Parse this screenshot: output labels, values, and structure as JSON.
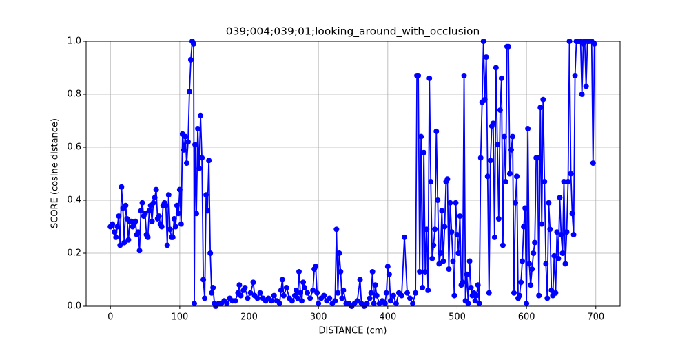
{
  "chart_data": {
    "type": "line",
    "title": "039;004;039;01;looking_around_with_occlusion",
    "xlabel": "DISTANCE (cm)",
    "ylabel": "SCORE (cosine distance)",
    "grid": true,
    "color": "#0000ff",
    "xlim": [
      -35,
      735
    ],
    "ylim": [
      0,
      1
    ],
    "xticks": [
      0,
      100,
      200,
      300,
      400,
      500,
      600,
      700
    ],
    "yticks": [
      {
        "value": 0,
        "label": "0.0"
      },
      {
        "value": 0.2,
        "label": "0.2"
      },
      {
        "value": 0.4,
        "label": "0.4"
      },
      {
        "value": 0.6,
        "label": "0.6"
      },
      {
        "value": 0.8,
        "label": "0.8"
      },
      {
        "value": 1,
        "label": "1.0"
      }
    ],
    "x": [
      0,
      3,
      6,
      8,
      10,
      12,
      14,
      16,
      18,
      20,
      22,
      24,
      26,
      28,
      30,
      32,
      34,
      36,
      38,
      40,
      42,
      44,
      46,
      48,
      50,
      52,
      54,
      56,
      58,
      60,
      62,
      64,
      66,
      68,
      70,
      72,
      74,
      76,
      78,
      80,
      82,
      84,
      86,
      88,
      90,
      92,
      94,
      96,
      98,
      100,
      102,
      104,
      106,
      108,
      110,
      112,
      114,
      116,
      118,
      120,
      121,
      122,
      124,
      126,
      128,
      130,
      132,
      134,
      136,
      138,
      140,
      142,
      144,
      146,
      148,
      150,
      152,
      156,
      160,
      164,
      168,
      172,
      176,
      180,
      184,
      186,
      188,
      192,
      194,
      198,
      202,
      206,
      208,
      212,
      216,
      220,
      224,
      228,
      232,
      236,
      240,
      244,
      246,
      248,
      250,
      254,
      258,
      262,
      266,
      268,
      270,
      272,
      274,
      276,
      278,
      280,
      284,
      288,
      292,
      294,
      296,
      298,
      300,
      304,
      308,
      312,
      316,
      320,
      324,
      326,
      328,
      330,
      332,
      334,
      336,
      340,
      344,
      348,
      352,
      356,
      360,
      362,
      366,
      370,
      374,
      376,
      378,
      380,
      382,
      384,
      388,
      392,
      396,
      398,
      400,
      402,
      404,
      408,
      412,
      416,
      420,
      424,
      428,
      432,
      436,
      440,
      442,
      444,
      446,
      448,
      450,
      452,
      454,
      456,
      458,
      460,
      462,
      464,
      466,
      468,
      470,
      472,
      474,
      476,
      478,
      480,
      482,
      484,
      486,
      488,
      490,
      492,
      494,
      496,
      498,
      500,
      502,
      504,
      506,
      508,
      510,
      512,
      514,
      516,
      518,
      520,
      522,
      524,
      526,
      528,
      530,
      532,
      534,
      536,
      538,
      540,
      542,
      544,
      546,
      548,
      550,
      552,
      554,
      556,
      558,
      560,
      562,
      564,
      566,
      568,
      570,
      572,
      574,
      576,
      578,
      580,
      582,
      584,
      586,
      588,
      590,
      592,
      594,
      596,
      598,
      600,
      602,
      604,
      606,
      608,
      610,
      612,
      614,
      616,
      618,
      620,
      622,
      624,
      626,
      628,
      630,
      632,
      634,
      636,
      638,
      640,
      642,
      644,
      646,
      648,
      650,
      652,
      654,
      656,
      658,
      660,
      662,
      664,
      666,
      668,
      670,
      672,
      674,
      676,
      678,
      680,
      682,
      684,
      686,
      688,
      690,
      694,
      696,
      698
    ],
    "values": [
      0.3,
      0.31,
      0.28,
      0.26,
      0.3,
      0.34,
      0.23,
      0.45,
      0.37,
      0.24,
      0.38,
      0.33,
      0.25,
      0.32,
      0.32,
      0.3,
      0.31,
      0.32,
      0.27,
      0.28,
      0.21,
      0.36,
      0.39,
      0.34,
      0.35,
      0.27,
      0.26,
      0.36,
      0.38,
      0.32,
      0.39,
      0.41,
      0.44,
      0.33,
      0.34,
      0.31,
      0.3,
      0.38,
      0.39,
      0.38,
      0.23,
      0.42,
      0.29,
      0.26,
      0.26,
      0.33,
      0.3,
      0.38,
      0.35,
      0.44,
      0.31,
      0.65,
      0.59,
      0.64,
      0.54,
      0.62,
      0.81,
      0.93,
      1.0,
      0.99,
      0.01,
      0.61,
      0.35,
      0.67,
      0.52,
      0.72,
      0.56,
      0.1,
      0.03,
      0.42,
      0.36,
      0.55,
      0.2,
      0.05,
      0.07,
      0.01,
      0,
      0.01,
      0.01,
      0.02,
      0.01,
      0.03,
      0.02,
      0.02,
      0.05,
      0.08,
      0.04,
      0.06,
      0.07,
      0.03,
      0.05,
      0.09,
      0.04,
      0.03,
      0.05,
      0.03,
      0.02,
      0.03,
      0.02,
      0.04,
      0.02,
      0.01,
      0.06,
      0.1,
      0.04,
      0.07,
      0.03,
      0.02,
      0.04,
      0.06,
      0.03,
      0.13,
      0.05,
      0.02,
      0.09,
      0.07,
      0.05,
      0.03,
      0.06,
      0.14,
      0.15,
      0.05,
      0.01,
      0.03,
      0.04,
      0.02,
      0.03,
      0.01,
      0.02,
      0.29,
      0.05,
      0.2,
      0.13,
      0.03,
      0.06,
      0.01,
      0.01,
      0,
      0.01,
      0.02,
      0.1,
      0.01,
      0,
      0.01,
      0.03,
      0.05,
      0.13,
      0.01,
      0.08,
      0.04,
      0.01,
      0.02,
      0.01,
      0.05,
      0.15,
      0.12,
      0.02,
      0.04,
      0.01,
      0.05,
      0.04,
      0.26,
      0.05,
      0.03,
      0.01,
      0.05,
      0.87,
      0.87,
      0.13,
      0.64,
      0.07,
      0.58,
      0.13,
      0.29,
      0.06,
      0.86,
      0.47,
      0.18,
      0.23,
      0.29,
      0.66,
      0.4,
      0.16,
      0.2,
      0.36,
      0.17,
      0.3,
      0.47,
      0.48,
      0.14,
      0.39,
      0.28,
      0.17,
      0.04,
      0.39,
      0.27,
      0.2,
      0.34,
      0.08,
      0.09,
      0.87,
      0.02,
      0.12,
      0.01,
      0.17,
      0.07,
      0.04,
      0.05,
      0.02,
      0.04,
      0.08,
      0.01,
      0.56,
      0.77,
      1.0,
      0.78,
      0.94,
      0.49,
      0.05,
      0.55,
      0.68,
      0.69,
      0.26,
      0.9,
      0.61,
      0.33,
      0.74,
      0.86,
      0.23,
      0.64,
      0.47,
      0.98,
      0.98,
      0.5,
      0.59,
      0.64,
      0.05,
      0.39,
      0.49,
      0.03,
      0.04,
      0.09,
      0.17,
      0.3,
      0.37,
      0.01,
      0.67,
      0.16,
      0.08,
      0.14,
      0.2,
      0.24,
      0.56,
      0.56,
      0.04,
      0.75,
      0.31,
      0.78,
      0.47,
      0.16,
      0.03,
      0.39,
      0.29,
      0.06,
      0.04,
      0.19,
      0.05,
      0.28,
      0.18,
      0.41,
      0.27,
      0.2,
      0.47,
      0.16,
      0.28,
      0.47,
      1.0,
      0.5,
      0.35,
      0.27,
      0.87,
      1.0,
      1.0,
      1.0,
      1.0,
      0.8,
      0.99,
      1.0,
      0.83,
      1.0,
      1.0,
      1.0,
      0.54,
      0.99
    ]
  }
}
